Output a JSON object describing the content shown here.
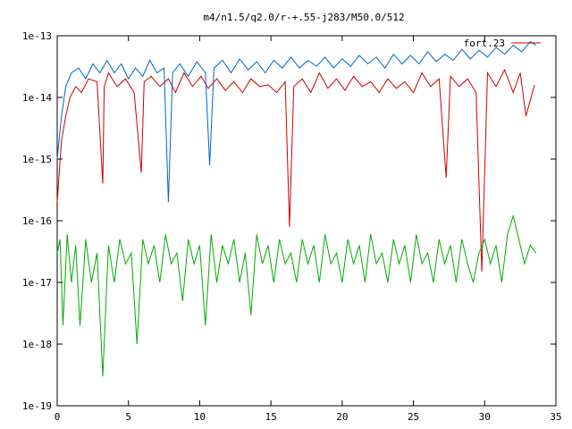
{
  "chart_data": {
    "type": "line",
    "title": "m4/n1.5/q2.0/r-+.55-j283/M50.0/512",
    "xlabel": "",
    "ylabel": "",
    "xlim": [
      0,
      35
    ],
    "ylim": [
      1e-19,
      1e-13
    ],
    "yscale": "log",
    "grid": false,
    "legend_position": "top-right",
    "x_ticks": [
      0,
      5,
      10,
      15,
      20,
      25,
      30,
      35
    ],
    "x_tick_labels": [
      "0",
      "5",
      "10",
      "15",
      "20",
      "25",
      "30",
      "35"
    ],
    "y_ticks": [
      1e-19,
      1e-18,
      1e-17,
      1e-16,
      1e-15,
      1e-14,
      1e-13
    ],
    "y_tick_labels": [
      "1e-19",
      "1e-18",
      "1e-17",
      "1e-16",
      "1e-15",
      "1e-14",
      "1e-13"
    ],
    "series": [
      {
        "name": "fort.23",
        "color": "#cc0000",
        "x": [
          0.0,
          0.3,
          0.6,
          0.9,
          1.3,
          1.7,
          2.2,
          2.8,
          3.2,
          3.3,
          3.6,
          4.2,
          4.8,
          5.4,
          5.9,
          6.1,
          6.6,
          7.2,
          7.8,
          8.3,
          8.9,
          9.5,
          10.1,
          10.6,
          11.2,
          11.8,
          12.4,
          13.0,
          13.6,
          14.2,
          14.8,
          15.4,
          16.0,
          16.3,
          16.6,
          17.2,
          17.8,
          18.4,
          19.0,
          19.6,
          20.2,
          20.8,
          21.4,
          22.0,
          22.6,
          23.2,
          23.8,
          24.4,
          25.0,
          25.6,
          26.2,
          26.8,
          27.3,
          27.6,
          28.2,
          28.8,
          29.4,
          29.8,
          30.2,
          30.8,
          31.4,
          32.0,
          32.5,
          32.9,
          33.5
        ],
        "y": [
          2e-16,
          2e-15,
          5e-15,
          1e-14,
          1.5e-14,
          1.2e-14,
          2e-14,
          1.8e-14,
          4e-16,
          1.5e-14,
          2.5e-14,
          1.5e-14,
          2e-14,
          1.2e-14,
          6e-16,
          1.8e-14,
          2.2e-14,
          1.5e-14,
          2e-14,
          1.2e-14,
          2.5e-14,
          1.5e-14,
          2.2e-14,
          1.4e-14,
          2e-14,
          1.3e-14,
          1.8e-14,
          1.2e-14,
          2e-14,
          1.5e-14,
          1.6e-14,
          1.2e-14,
          1.8e-14,
          8e-17,
          1.5e-14,
          2e-14,
          1.2e-14,
          2.5e-14,
          1.4e-14,
          2e-14,
          1.3e-14,
          2.2e-14,
          1.5e-14,
          1.8e-14,
          1.2e-14,
          2e-14,
          1.4e-14,
          1.8e-14,
          1.2e-14,
          2.5e-14,
          1.5e-14,
          2e-14,
          5e-16,
          2.2e-14,
          1.5e-14,
          2e-14,
          1.2e-14,
          1.5e-17,
          2.5e-14,
          1.5e-14,
          2.8e-14,
          1.2e-14,
          2.5e-14,
          5e-15,
          1.6e-14
        ]
      },
      {
        "name": "",
        "color": "#0066cc",
        "x": [
          0.0,
          0.3,
          0.6,
          1.0,
          1.5,
          2.0,
          2.5,
          3.0,
          3.5,
          4.0,
          4.5,
          5.0,
          5.5,
          6.0,
          6.5,
          7.0,
          7.5,
          7.8,
          8.1,
          8.6,
          9.2,
          9.8,
          10.4,
          10.7,
          11.0,
          11.6,
          12.2,
          12.8,
          13.4,
          14.0,
          14.6,
          15.2,
          15.8,
          16.4,
          17.0,
          17.6,
          18.2,
          18.8,
          19.4,
          20.0,
          20.6,
          21.2,
          21.8,
          22.4,
          23.0,
          23.6,
          24.2,
          24.8,
          25.4,
          26.0,
          26.6,
          27.2,
          27.8,
          28.4,
          29.0,
          29.6,
          30.2,
          30.8,
          31.4,
          32.0,
          32.6,
          33.2,
          33.6
        ],
        "y": [
          1e-15,
          5e-15,
          1.5e-14,
          2.5e-14,
          3e-14,
          2e-14,
          3.5e-14,
          2.5e-14,
          4e-14,
          2.5e-14,
          3.5e-14,
          2e-14,
          3e-14,
          2.2e-14,
          4e-14,
          2.5e-14,
          3e-14,
          2e-16,
          2.5e-14,
          3.5e-14,
          2.2e-14,
          3.8e-14,
          2.5e-14,
          8e-16,
          3e-14,
          4e-14,
          2.5e-14,
          4.2e-14,
          2.8e-14,
          3.8e-14,
          2.5e-14,
          4e-14,
          3e-14,
          4.5e-14,
          3e-14,
          4e-14,
          3.2e-14,
          4.5e-14,
          3e-14,
          4.2e-14,
          3.2e-14,
          4.8e-14,
          3.5e-14,
          4.5e-14,
          3e-14,
          5e-14,
          3.5e-14,
          4.8e-14,
          3.5e-14,
          5.5e-14,
          3.8e-14,
          5e-14,
          4e-14,
          6e-14,
          4.2e-14,
          5.8e-14,
          4.5e-14,
          6.5e-14,
          5e-14,
          7e-14,
          5.5e-14,
          8e-14,
          7e-14
        ]
      },
      {
        "name": "",
        "color": "#00aa00",
        "x": [
          0.0,
          0.2,
          0.4,
          0.7,
          1.0,
          1.3,
          1.6,
          2.0,
          2.4,
          2.8,
          3.2,
          3.6,
          4.0,
          4.4,
          4.8,
          5.2,
          5.6,
          6.0,
          6.4,
          6.8,
          7.2,
          7.6,
          8.0,
          8.4,
          8.8,
          9.2,
          9.6,
          10.0,
          10.4,
          10.8,
          11.2,
          11.6,
          12.0,
          12.4,
          12.8,
          13.2,
          13.6,
          14.0,
          14.4,
          14.8,
          15.2,
          15.6,
          16.0,
          16.4,
          16.8,
          17.2,
          17.6,
          18.0,
          18.4,
          18.8,
          19.2,
          19.6,
          20.0,
          20.4,
          20.8,
          21.2,
          21.6,
          22.0,
          22.4,
          22.8,
          23.2,
          23.6,
          24.0,
          24.4,
          24.8,
          25.2,
          25.6,
          26.0,
          26.4,
          26.8,
          27.2,
          27.6,
          28.0,
          28.4,
          28.8,
          29.2,
          29.6,
          30.0,
          30.4,
          30.8,
          31.2,
          31.6,
          32.0,
          32.4,
          32.8,
          33.2,
          33.6
        ],
        "y": [
          3e-17,
          5e-17,
          2e-18,
          6e-17,
          1e-17,
          4e-17,
          2e-18,
          5e-17,
          1e-17,
          3e-17,
          3e-19,
          4e-17,
          1e-17,
          5e-17,
          2e-17,
          3e-17,
          1e-18,
          5e-17,
          2e-17,
          4e-17,
          1e-17,
          6e-17,
          2e-17,
          3e-17,
          5e-18,
          5e-17,
          2e-17,
          4e-17,
          2e-18,
          6e-17,
          1e-17,
          4e-17,
          2e-17,
          5e-17,
          1e-17,
          3e-17,
          3e-18,
          6e-17,
          2e-17,
          4e-17,
          1e-17,
          5e-17,
          2e-17,
          3e-17,
          1e-17,
          5e-17,
          2e-17,
          4e-17,
          1e-17,
          6e-17,
          2e-17,
          3e-17,
          1e-17,
          5e-17,
          2e-17,
          4e-17,
          1e-17,
          6e-17,
          2e-17,
          3e-17,
          1e-17,
          5e-17,
          2e-17,
          4e-17,
          1e-17,
          6e-17,
          2e-17,
          3e-17,
          1e-17,
          5e-17,
          2e-17,
          4e-17,
          1e-17,
          5e-17,
          2e-17,
          1e-17,
          3e-17,
          5e-17,
          2e-17,
          4e-17,
          1e-17,
          6e-17,
          1.2e-16,
          5e-17,
          2e-17,
          4e-17,
          3e-17
        ]
      }
    ]
  }
}
